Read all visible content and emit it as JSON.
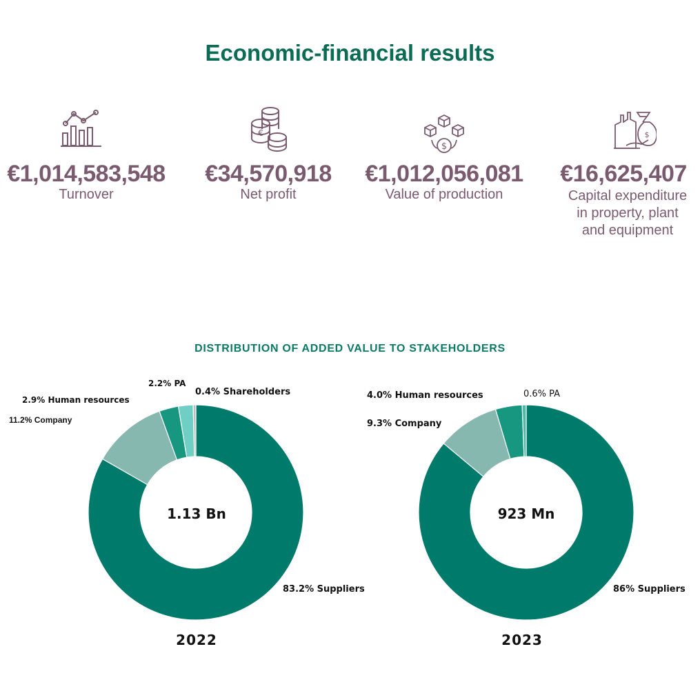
{
  "title": "Economic-financial results",
  "kpis": [
    {
      "value": "€1,014,583,548",
      "label": "Turnover",
      "icon": "bar-line-chart-icon"
    },
    {
      "value": "€34,570,918",
      "label": "Net profit",
      "icon": "coins-icon"
    },
    {
      "value": "€1,012,056,081",
      "label": "Value of production",
      "icon": "production-icon"
    },
    {
      "value": "€16,625,407",
      "label": "Capital expenditure\nin property, plant\nand equipment",
      "icon": "factory-money-bag-icon"
    }
  ],
  "colors": {
    "title": "#0b6b55",
    "kpi_text": "#7a5a6f",
    "suppliers": "#007b6b",
    "company": "#86b8b0",
    "human_resources": "#17977f",
    "pa_2022": "#6fcfc4",
    "pa_2023": "#4fb8a6",
    "shareholders": "#bfbfbf"
  },
  "chart_title": "DISTRIBUTION OF ADDED VALUE TO STAKEHOLDERS",
  "chart_data": [
    {
      "type": "pie",
      "year": "2022",
      "center_text": "1.13 Bn",
      "slices": [
        {
          "label": "0.4% Shareholders",
          "value": 0.4
        },
        {
          "label": "83.2% Suppliers",
          "value": 83.2
        },
        {
          "label": "11.2% Company",
          "value": 11.2
        },
        {
          "label": "2.9% Human resources",
          "value": 2.9
        },
        {
          "label": "2.2% PA",
          "value": 2.2
        }
      ]
    },
    {
      "type": "pie",
      "year": "2023",
      "center_text": "923 Mn",
      "slices": [
        {
          "label": "86% Suppliers",
          "value": 86
        },
        {
          "label": "9.3% Company",
          "value": 9.3
        },
        {
          "label": "4.0% Human resources",
          "value": 4.0
        },
        {
          "label": "0.6% PA",
          "value": 0.6
        }
      ]
    }
  ]
}
